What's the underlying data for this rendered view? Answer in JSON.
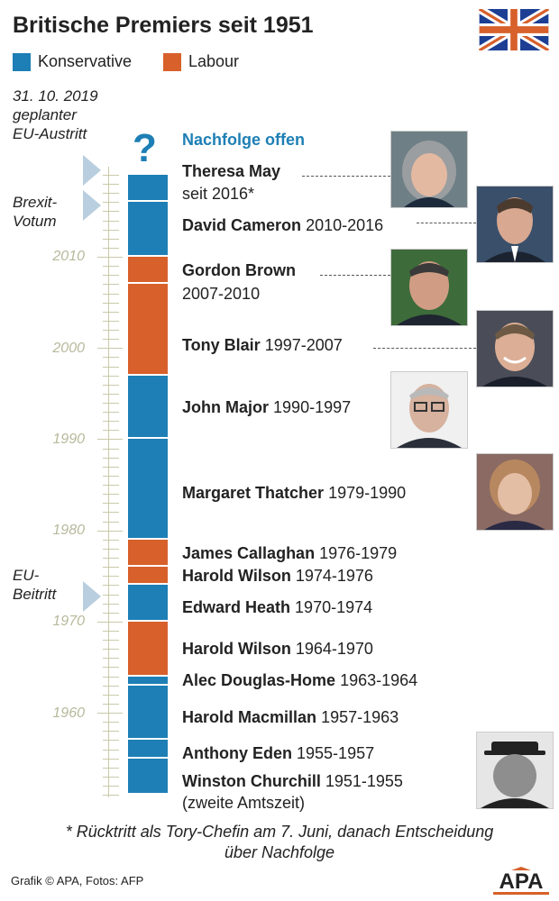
{
  "title": "Britische Premiers seit 1951",
  "legend": [
    {
      "label": "Konservative",
      "color": "#1d7fb5"
    },
    {
      "label": "Labour",
      "color": "#d7602b"
    }
  ],
  "side_notes": {
    "exit": [
      "31. 10. 2019",
      "geplanter",
      "EU-Austritt"
    ],
    "brexit": [
      "Brexit-",
      "Votum"
    ],
    "eu_join": [
      "EU-",
      "Beitritt"
    ]
  },
  "year_axis": [
    "2010",
    "2000",
    "1990",
    "1980",
    "1970",
    "1960"
  ],
  "question_mark": "?",
  "successor": "Nachfolge offen",
  "premiers": [
    {
      "name": "Theresa May",
      "years": "seit 2016*",
      "party": "Konservative",
      "start": 2016,
      "end": 2019
    },
    {
      "name": "David Cameron",
      "years": "2010-2016",
      "party": "Konservative",
      "start": 2010,
      "end": 2016
    },
    {
      "name": "Gordon Brown",
      "years": "2007-2010",
      "party": "Labour",
      "start": 2007,
      "end": 2010
    },
    {
      "name": "Tony Blair",
      "years": "1997-2007",
      "party": "Labour",
      "start": 1997,
      "end": 2007
    },
    {
      "name": "John Major",
      "years": "1990-1997",
      "party": "Konservative",
      "start": 1990,
      "end": 1997
    },
    {
      "name": "Margaret Thatcher",
      "years": "1979-1990",
      "party": "Konservative",
      "start": 1979,
      "end": 1990
    },
    {
      "name": "James Callaghan",
      "years": "1976-1979",
      "party": "Labour",
      "start": 1976,
      "end": 1979
    },
    {
      "name": "Harold Wilson",
      "years": "1974-1976",
      "party": "Labour",
      "start": 1974,
      "end": 1976
    },
    {
      "name": "Edward Heath",
      "years": "1970-1974",
      "party": "Konservative",
      "start": 1970,
      "end": 1974
    },
    {
      "name": "Harold Wilson",
      "years": "1964-1970",
      "party": "Labour",
      "start": 1964,
      "end": 1970
    },
    {
      "name": "Alec Douglas-Home",
      "years": "1963-1964",
      "party": "Konservative",
      "start": 1963,
      "end": 1964
    },
    {
      "name": "Harold Macmillan",
      "years": "1957-1963",
      "party": "Konservative",
      "start": 1957,
      "end": 1963
    },
    {
      "name": "Anthony Eden",
      "years": "1955-1957",
      "party": "Konservative",
      "start": 1955,
      "end": 1957
    },
    {
      "name": "Winston Churchill",
      "years": "1951-1955",
      "party": "Konservative",
      "start": 1951,
      "end": 1955
    }
  ],
  "churchill_note": "(zweite Amtszeit)",
  "footnote": [
    "* Rücktritt als Tory-Chefin am 7. Juni, danach Entscheidung",
    "über Nachfolge"
  ],
  "credit": "Grafik © APA, Fotos: AFP",
  "logo_text": "APA",
  "flag_icon": "union-jack-flag"
}
